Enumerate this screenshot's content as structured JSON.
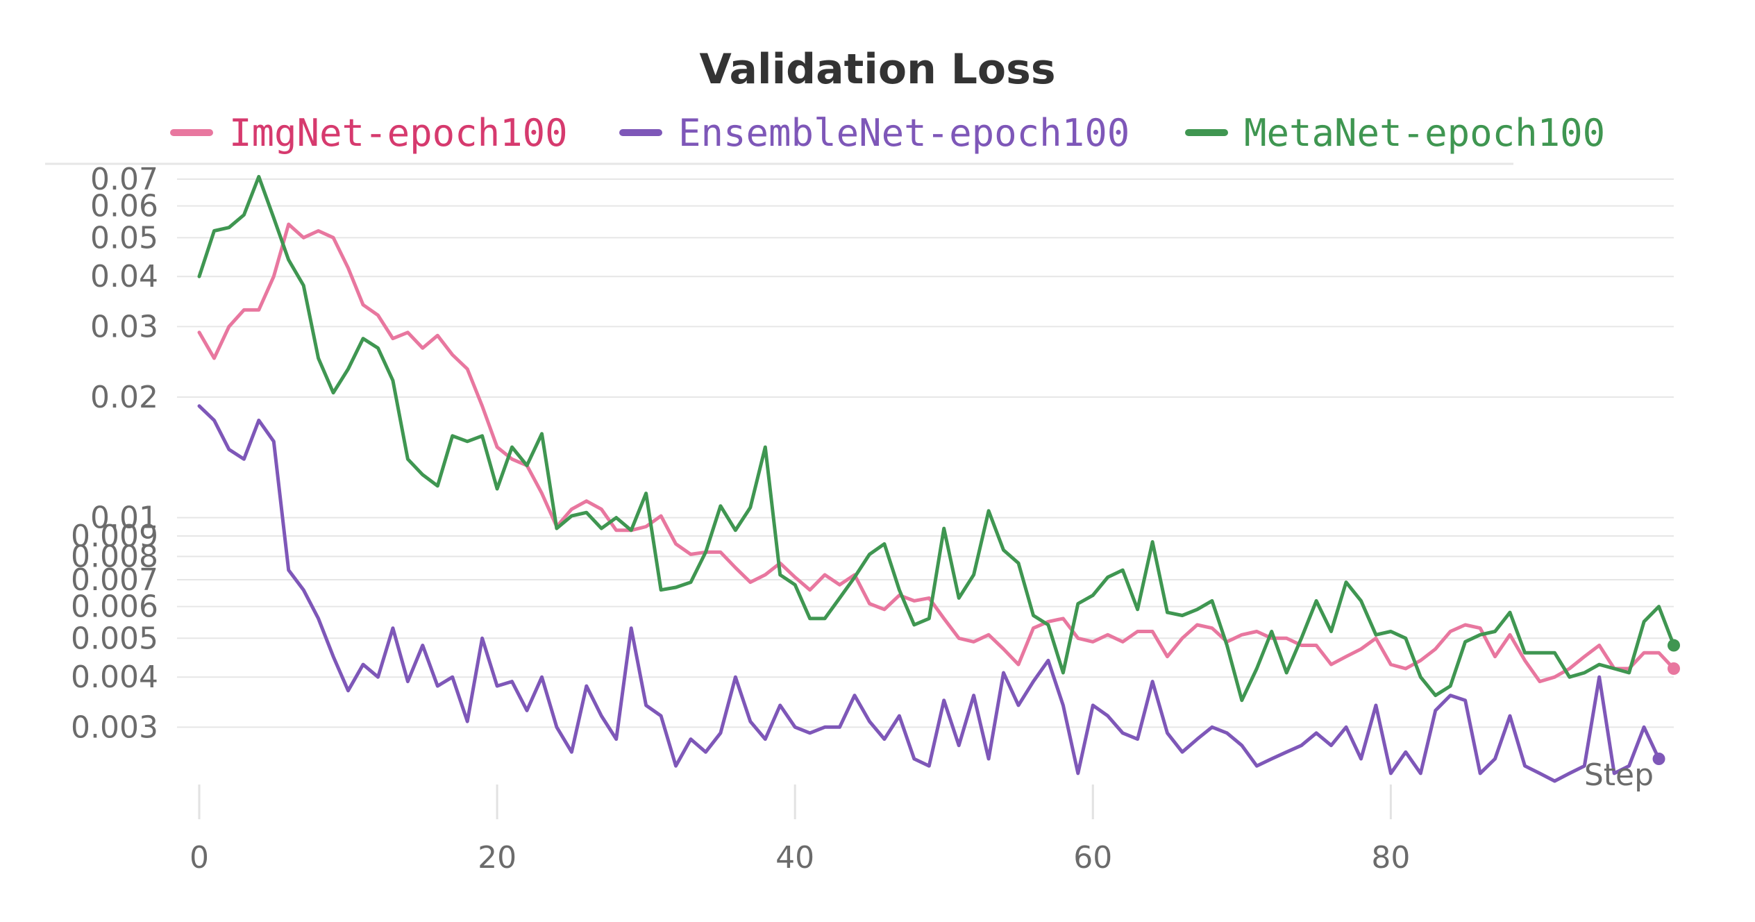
{
  "chart_data": {
    "type": "line",
    "title": "Validation Loss",
    "xlabel": "Step",
    "ylabel": "",
    "yscale": "log",
    "xlim": [
      0,
      99
    ],
    "ylim": [
      0.0025,
      0.07
    ],
    "grid": true,
    "legend_position": "top",
    "x_ticks": [
      0,
      20,
      40,
      60,
      80
    ],
    "y_ticks": [
      0.07,
      0.06,
      0.05,
      0.04,
      0.03,
      0.02,
      0.01,
      0.009,
      0.008,
      0.007,
      0.006,
      0.005,
      0.004,
      0.003
    ],
    "y_tick_labels": [
      "0.07",
      "0.06",
      "0.05",
      "0.04",
      "0.03",
      "0.02",
      "0.01",
      "0.009",
      "0.008",
      "0.007",
      "0.006",
      "0.005",
      "0.004",
      "0.003"
    ],
    "series": [
      {
        "name": "ImgNet-epoch100",
        "color": "#e8779f",
        "label_color": "#d63a6e",
        "values": [
          0.029,
          0.025,
          0.03,
          0.033,
          0.033,
          0.04,
          0.054,
          0.05,
          0.052,
          0.05,
          0.042,
          0.034,
          0.032,
          0.028,
          0.029,
          0.0265,
          0.0285,
          0.0255,
          0.0235,
          0.019,
          0.015,
          0.014,
          0.0135,
          0.0115,
          0.0095,
          0.0105,
          0.011,
          0.0105,
          0.0093,
          0.0093,
          0.0095,
          0.0101,
          0.0086,
          0.0081,
          0.0082,
          0.0082,
          0.0075,
          0.0069,
          0.0072,
          0.0077,
          0.0071,
          0.0066,
          0.0072,
          0.0068,
          0.0072,
          0.0061,
          0.0059,
          0.0064,
          0.0062,
          0.0063,
          0.0056,
          0.005,
          0.0049,
          0.0051,
          0.0047,
          0.0043,
          0.0053,
          0.0055,
          0.0056,
          0.005,
          0.0049,
          0.0051,
          0.0049,
          0.0052,
          0.0052,
          0.0045,
          0.005,
          0.0054,
          0.0053,
          0.0049,
          0.0051,
          0.0052,
          0.005,
          0.005,
          0.0048,
          0.0048,
          0.0043,
          0.0045,
          0.0047,
          0.005,
          0.0043,
          0.0042,
          0.0044,
          0.0047,
          0.0052,
          0.0054,
          0.0053,
          0.0045,
          0.0051,
          0.0044,
          0.0039,
          0.004,
          0.0042,
          0.0045,
          0.0048,
          0.0042,
          0.0042,
          0.0046,
          0.0046,
          0.0042
        ]
      },
      {
        "name": "EnsembleNet-epoch100",
        "color": "#7e57b8",
        "label_color": "#7e57b8",
        "values": [
          0.019,
          0.0175,
          0.0148,
          0.014,
          0.0175,
          0.0155,
          0.0074,
          0.0066,
          0.0056,
          0.0045,
          0.0037,
          0.0043,
          0.004,
          0.0053,
          0.0039,
          0.0048,
          0.0038,
          0.004,
          0.0031,
          0.005,
          0.0038,
          0.0039,
          0.0033,
          0.004,
          0.003,
          0.0026,
          0.0038,
          0.0032,
          0.0028,
          0.0053,
          0.0034,
          0.0032,
          0.0024,
          0.0028,
          0.0026,
          0.0029,
          0.004,
          0.0031,
          0.0028,
          0.0034,
          0.003,
          0.0029,
          0.003,
          0.003,
          0.0036,
          0.0031,
          0.0028,
          0.0032,
          0.0025,
          0.0024,
          0.0035,
          0.0027,
          0.0036,
          0.0025,
          0.0041,
          0.0034,
          0.0039,
          0.0044,
          0.0034,
          0.0023,
          0.0034,
          0.0032,
          0.0029,
          0.0028,
          0.0039,
          0.0029,
          0.0026,
          0.0028,
          0.003,
          0.0029,
          0.0027,
          0.0024,
          0.0025,
          0.0026,
          0.0027,
          0.0029,
          0.0027,
          0.003,
          0.0025,
          0.0034,
          0.0023,
          0.0026,
          0.0023,
          0.0033,
          0.0036,
          0.0035,
          0.0023,
          0.0025,
          0.0032,
          0.0024,
          0.0023,
          0.0022,
          0.0023,
          0.0024,
          0.004,
          0.0023,
          0.0024,
          0.003,
          0.0025
        ]
      },
      {
        "name": "MetaNet-epoch100",
        "color": "#3f9651",
        "label_color": "#3f9651",
        "values": [
          0.04,
          0.052,
          0.053,
          0.057,
          0.071,
          0.056,
          0.044,
          0.038,
          0.025,
          0.0205,
          0.0235,
          0.028,
          0.0265,
          0.022,
          0.014,
          0.0128,
          0.012,
          0.016,
          0.0155,
          0.016,
          0.0118,
          0.015,
          0.0135,
          0.0162,
          0.0094,
          0.0101,
          0.0103,
          0.0094,
          0.01,
          0.0093,
          0.0115,
          0.0066,
          0.0067,
          0.0069,
          0.0082,
          0.0107,
          0.0093,
          0.0106,
          0.015,
          0.0072,
          0.0068,
          0.0056,
          0.0056,
          0.0063,
          0.0071,
          0.0081,
          0.0086,
          0.0066,
          0.0054,
          0.0056,
          0.0094,
          0.0063,
          0.0072,
          0.0104,
          0.0083,
          0.0077,
          0.0057,
          0.0054,
          0.0041,
          0.0061,
          0.0064,
          0.0071,
          0.0074,
          0.0059,
          0.0087,
          0.0058,
          0.0057,
          0.0059,
          0.0062,
          0.0048,
          0.0035,
          0.0042,
          0.0052,
          0.0041,
          0.005,
          0.0062,
          0.0052,
          0.0069,
          0.0062,
          0.0051,
          0.0052,
          0.005,
          0.004,
          0.0036,
          0.0038,
          0.0049,
          0.0051,
          0.0052,
          0.0058,
          0.0046,
          0.0046,
          0.0046,
          0.004,
          0.0041,
          0.0043,
          0.0042,
          0.0041,
          0.0055,
          0.006,
          0.0048
        ]
      }
    ]
  }
}
